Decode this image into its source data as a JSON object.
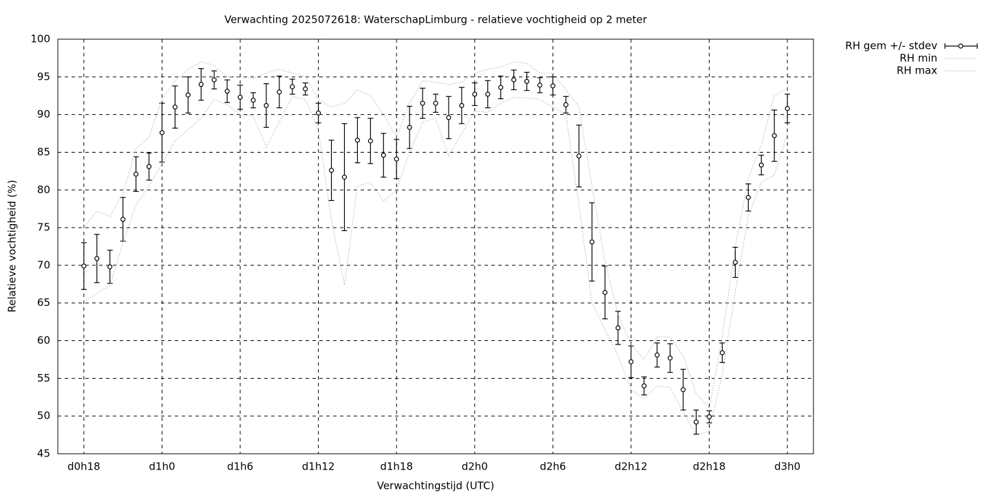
{
  "chart_data": {
    "type": "errorbar",
    "title": "Verwachting 2025072618: WaterschapLimburg - relatieve vochtigheid op 2 meter",
    "xlabel": "Verwachtingstijd (UTC)",
    "ylabel": "Relatieve vochtigheid (%)",
    "x": [
      18,
      19,
      20,
      21,
      22,
      23,
      24,
      25,
      26,
      27,
      28,
      29,
      30,
      31,
      32,
      33,
      34,
      35,
      36,
      37,
      38,
      39,
      40,
      41,
      42,
      43,
      44,
      45,
      46,
      47,
      48,
      49,
      50,
      51,
      52,
      53,
      54,
      55,
      56,
      57,
      58,
      59,
      60,
      61,
      62,
      63,
      64,
      65,
      66,
      67,
      68,
      69,
      70,
      71,
      72
    ],
    "xlim": [
      16,
      74
    ],
    "xticks": [
      {
        "value": 18,
        "label": "d0h18"
      },
      {
        "value": 24,
        "label": "d1h0"
      },
      {
        "value": 30,
        "label": "d1h6"
      },
      {
        "value": 36,
        "label": "d1h12"
      },
      {
        "value": 42,
        "label": "d1h18"
      },
      {
        "value": 48,
        "label": "d2h0"
      },
      {
        "value": 54,
        "label": "d2h6"
      },
      {
        "value": 60,
        "label": "d2h12"
      },
      {
        "value": 66,
        "label": "d2h18"
      },
      {
        "value": 72,
        "label": "d3h0"
      }
    ],
    "ylim": [
      45,
      100
    ],
    "yticks": [
      45,
      50,
      55,
      60,
      65,
      70,
      75,
      80,
      85,
      90,
      95,
      100
    ],
    "grid": true,
    "legend": "outside-right",
    "series": [
      {
        "name": "RH gem +/- stdev",
        "color": "#000000",
        "style": "errorbars",
        "values": [
          69.9,
          70.9,
          69.8,
          76.1,
          82.1,
          83.1,
          87.6,
          91.0,
          92.6,
          94.0,
          94.6,
          93.1,
          92.3,
          91.9,
          91.2,
          93.0,
          93.7,
          93.4,
          90.2,
          82.6,
          81.7,
          86.6,
          86.5,
          84.6,
          84.1,
          88.3,
          91.5,
          91.5,
          89.6,
          91.2,
          92.7,
          92.7,
          93.6,
          94.6,
          94.4,
          93.9,
          93.8,
          91.3,
          84.5,
          73.1,
          66.4,
          61.7,
          57.2,
          54.0,
          58.1,
          57.7,
          53.5,
          49.2,
          49.9,
          58.4,
          70.4,
          79.0,
          83.3,
          87.2,
          90.8
        ],
        "errors": [
          3.1,
          3.2,
          2.2,
          2.9,
          2.3,
          1.8,
          3.9,
          2.8,
          2.4,
          2.1,
          1.2,
          1.5,
          1.6,
          1.0,
          2.9,
          2.1,
          1.0,
          0.8,
          1.3,
          4.0,
          7.1,
          3.0,
          3.0,
          2.9,
          2.6,
          2.8,
          2.0,
          1.2,
          2.8,
          2.4,
          1.5,
          1.8,
          1.5,
          1.3,
          1.2,
          1.0,
          1.2,
          1.1,
          4.1,
          5.2,
          3.5,
          2.2,
          2.1,
          1.2,
          1.6,
          1.9,
          2.7,
          1.6,
          0.8,
          1.3,
          2.0,
          1.8,
          1.3,
          3.4,
          1.9
        ]
      },
      {
        "name": "RH min",
        "color": "#aaaaaa",
        "style": "dotted",
        "values": [
          65.2,
          66.3,
          67.3,
          73.0,
          78.0,
          80.5,
          83.5,
          86.5,
          88.0,
          89.5,
          92.0,
          91.3,
          90.0,
          89.8,
          85.7,
          89.0,
          92.4,
          92.0,
          88.0,
          76.0,
          67.4,
          80.5,
          81.0,
          78.5,
          80.0,
          85.0,
          89.0,
          89.5,
          84.5,
          87.5,
          90.5,
          90.3,
          91.5,
          92.3,
          92.2,
          92.0,
          91.0,
          90.0,
          78.0,
          65.0,
          61.5,
          58.0,
          53.5,
          52.3,
          54.0,
          53.8,
          50.5,
          47.5,
          48.0,
          55.5,
          66.5,
          76.5,
          81.0,
          82.0,
          87.5
        ]
      },
      {
        "name": "RH max",
        "color": "#aaaaaa",
        "style": "dotted",
        "values": [
          75.0,
          77.2,
          76.5,
          79.5,
          85.5,
          87.0,
          92.0,
          94.5,
          96.0,
          97.0,
          96.5,
          95.0,
          95.0,
          94.8,
          95.5,
          96.0,
          95.5,
          95.0,
          92.0,
          91.0,
          91.5,
          93.3,
          92.5,
          90.0,
          87.0,
          91.5,
          94.5,
          94.3,
          94.0,
          94.3,
          95.5,
          96.0,
          96.3,
          97.0,
          96.8,
          95.5,
          95.5,
          93.3,
          91.0,
          80.5,
          70.5,
          63.5,
          59.5,
          57.5,
          60.5,
          60.5,
          58.0,
          53.0,
          51.0,
          60.5,
          72.5,
          81.5,
          86.0,
          92.5,
          93.5
        ]
      }
    ]
  }
}
